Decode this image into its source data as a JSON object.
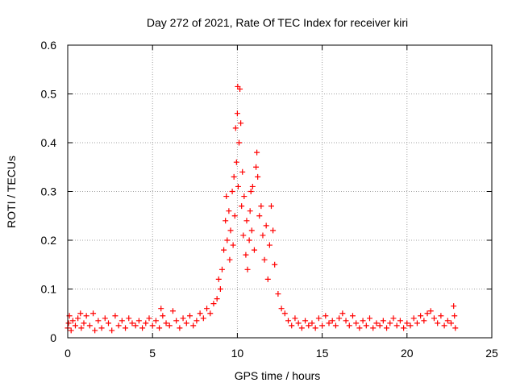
{
  "chart_data": {
    "type": "scatter",
    "title": "Day 272 of 2021, Rate Of TEC Index for receiver kiri",
    "xlabel": "GPS time / hours",
    "ylabel": "ROTI / TECUs",
    "xlim": [
      0,
      25
    ],
    "ylim": [
      0,
      0.6
    ],
    "xticks": [
      0,
      5,
      10,
      15,
      20,
      25
    ],
    "yticks": [
      0,
      0.1,
      0.2,
      0.3,
      0.4,
      0.5,
      0.6
    ],
    "grid": true,
    "marker": "+",
    "color": "#ff0000",
    "series": [
      {
        "points": [
          [
            0.0,
            0.02
          ],
          [
            0.05,
            0.03
          ],
          [
            0.1,
            0.045
          ],
          [
            0.2,
            0.015
          ],
          [
            0.3,
            0.035
          ],
          [
            0.45,
            0.025
          ],
          [
            0.6,
            0.04
          ],
          [
            0.75,
            0.05
          ],
          [
            0.8,
            0.02
          ],
          [
            0.95,
            0.03
          ],
          [
            1.1,
            0.045
          ],
          [
            1.3,
            0.025
          ],
          [
            1.5,
            0.05
          ],
          [
            1.6,
            0.015
          ],
          [
            1.8,
            0.035
          ],
          [
            2.0,
            0.02
          ],
          [
            2.2,
            0.04
          ],
          [
            2.4,
            0.03
          ],
          [
            2.6,
            0.015
          ],
          [
            2.8,
            0.045
          ],
          [
            3.0,
            0.025
          ],
          [
            3.2,
            0.035
          ],
          [
            3.4,
            0.02
          ],
          [
            3.6,
            0.04
          ],
          [
            3.8,
            0.03
          ],
          [
            4.0,
            0.025
          ],
          [
            4.2,
            0.035
          ],
          [
            4.4,
            0.02
          ],
          [
            4.6,
            0.03
          ],
          [
            4.8,
            0.04
          ],
          [
            5.0,
            0.025
          ],
          [
            5.2,
            0.035
          ],
          [
            5.4,
            0.02
          ],
          [
            5.5,
            0.06
          ],
          [
            5.6,
            0.045
          ],
          [
            5.8,
            0.03
          ],
          [
            6.0,
            0.025
          ],
          [
            6.2,
            0.055
          ],
          [
            6.4,
            0.035
          ],
          [
            6.6,
            0.02
          ],
          [
            6.8,
            0.04
          ],
          [
            7.0,
            0.03
          ],
          [
            7.2,
            0.045
          ],
          [
            7.4,
            0.025
          ],
          [
            7.6,
            0.035
          ],
          [
            7.8,
            0.05
          ],
          [
            8.0,
            0.04
          ],
          [
            8.2,
            0.06
          ],
          [
            8.4,
            0.05
          ],
          [
            8.6,
            0.07
          ],
          [
            8.8,
            0.08
          ],
          [
            8.9,
            0.12
          ],
          [
            9.0,
            0.1
          ],
          [
            9.1,
            0.14
          ],
          [
            9.2,
            0.18
          ],
          [
            9.3,
            0.24
          ],
          [
            9.35,
            0.29
          ],
          [
            9.4,
            0.2
          ],
          [
            9.5,
            0.26
          ],
          [
            9.55,
            0.16
          ],
          [
            9.6,
            0.22
          ],
          [
            9.7,
            0.3
          ],
          [
            9.75,
            0.19
          ],
          [
            9.8,
            0.33
          ],
          [
            9.85,
            0.25
          ],
          [
            9.9,
            0.43
          ],
          [
            9.95,
            0.36
          ],
          [
            10.0,
            0.46
          ],
          [
            10.02,
            0.515
          ],
          [
            10.05,
            0.31
          ],
          [
            10.1,
            0.4
          ],
          [
            10.15,
            0.51
          ],
          [
            10.2,
            0.44
          ],
          [
            10.25,
            0.27
          ],
          [
            10.3,
            0.34
          ],
          [
            10.35,
            0.21
          ],
          [
            10.4,
            0.29
          ],
          [
            10.5,
            0.17
          ],
          [
            10.55,
            0.24
          ],
          [
            10.6,
            0.14
          ],
          [
            10.7,
            0.2
          ],
          [
            10.75,
            0.26
          ],
          [
            10.8,
            0.3
          ],
          [
            10.85,
            0.22
          ],
          [
            10.9,
            0.31
          ],
          [
            11.0,
            0.18
          ],
          [
            11.1,
            0.35
          ],
          [
            11.15,
            0.38
          ],
          [
            11.2,
            0.33
          ],
          [
            11.3,
            0.25
          ],
          [
            11.4,
            0.27
          ],
          [
            11.5,
            0.21
          ],
          [
            11.6,
            0.16
          ],
          [
            11.7,
            0.23
          ],
          [
            11.8,
            0.12
          ],
          [
            11.9,
            0.19
          ],
          [
            12.0,
            0.27
          ],
          [
            12.1,
            0.22
          ],
          [
            12.2,
            0.15
          ],
          [
            12.4,
            0.09
          ],
          [
            12.6,
            0.06
          ],
          [
            12.8,
            0.05
          ],
          [
            13.0,
            0.035
          ],
          [
            13.2,
            0.025
          ],
          [
            13.4,
            0.04
          ],
          [
            13.6,
            0.03
          ],
          [
            13.8,
            0.02
          ],
          [
            14.0,
            0.035
          ],
          [
            14.2,
            0.025
          ],
          [
            14.4,
            0.03
          ],
          [
            14.6,
            0.02
          ],
          [
            14.8,
            0.04
          ],
          [
            15.0,
            0.025
          ],
          [
            15.2,
            0.045
          ],
          [
            15.4,
            0.03
          ],
          [
            15.6,
            0.035
          ],
          [
            15.8,
            0.025
          ],
          [
            16.0,
            0.04
          ],
          [
            16.2,
            0.05
          ],
          [
            16.4,
            0.035
          ],
          [
            16.6,
            0.025
          ],
          [
            16.8,
            0.045
          ],
          [
            17.0,
            0.03
          ],
          [
            17.2,
            0.02
          ],
          [
            17.4,
            0.035
          ],
          [
            17.6,
            0.025
          ],
          [
            17.8,
            0.04
          ],
          [
            18.0,
            0.02
          ],
          [
            18.2,
            0.03
          ],
          [
            18.4,
            0.025
          ],
          [
            18.6,
            0.035
          ],
          [
            18.8,
            0.02
          ],
          [
            19.0,
            0.03
          ],
          [
            19.2,
            0.04
          ],
          [
            19.4,
            0.025
          ],
          [
            19.6,
            0.035
          ],
          [
            19.8,
            0.02
          ],
          [
            20.0,
            0.03
          ],
          [
            20.2,
            0.025
          ],
          [
            20.4,
            0.04
          ],
          [
            20.6,
            0.03
          ],
          [
            20.8,
            0.045
          ],
          [
            21.0,
            0.035
          ],
          [
            21.2,
            0.05
          ],
          [
            21.4,
            0.055
          ],
          [
            21.6,
            0.04
          ],
          [
            21.8,
            0.03
          ],
          [
            22.0,
            0.045
          ],
          [
            22.2,
            0.025
          ],
          [
            22.4,
            0.035
          ],
          [
            22.6,
            0.03
          ],
          [
            22.75,
            0.065
          ],
          [
            22.8,
            0.045
          ],
          [
            22.85,
            0.02
          ]
        ]
      }
    ]
  }
}
